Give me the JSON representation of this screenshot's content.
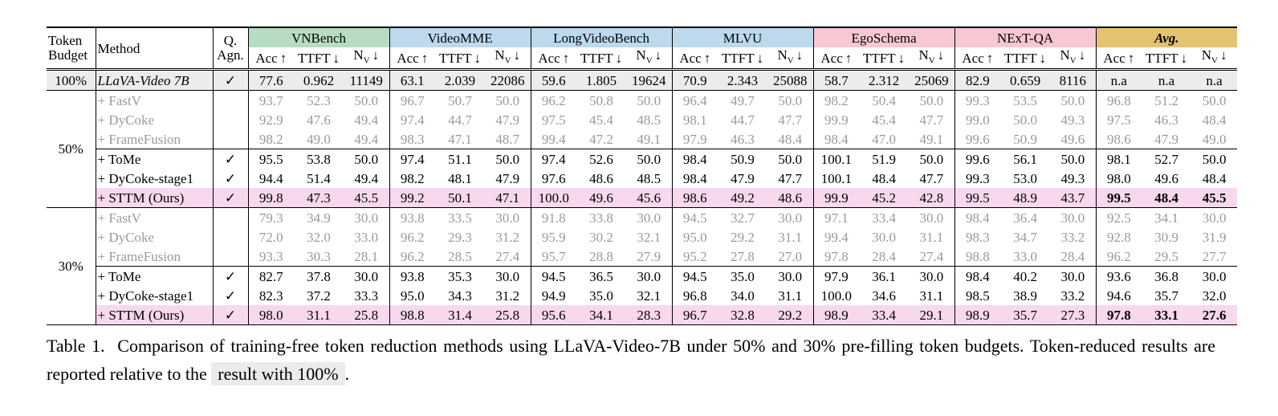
{
  "table": {
    "header": {
      "budget": "Token Budget",
      "method": "Method",
      "qagn": "Q. Agn.",
      "groups": [
        {
          "name": "VNBench",
          "color": "#b7dcc1"
        },
        {
          "name": "VideoMME",
          "color": "#bcd9ee"
        },
        {
          "name": "LongVideoBench",
          "color": "#bcd9ee"
        },
        {
          "name": "MLVU",
          "color": "#bcd9ee"
        },
        {
          "name": "EgoSchema",
          "color": "#f7c8d1"
        },
        {
          "name": "NExT-QA",
          "color": "#f7c8d1"
        },
        {
          "name": "Avg.",
          "color": "#e3c271",
          "emphasis": true
        }
      ],
      "metrics": [
        {
          "name": "Acc",
          "arrow": "↑"
        },
        {
          "name": "TTFT",
          "arrow": "↓"
        },
        {
          "name": "N",
          "sub": "V",
          "arrow": "↓"
        }
      ]
    },
    "colors": {
      "baseline": "#ececec",
      "ours": "#f7d8ee",
      "muted": "#9a9a9a"
    },
    "baseline": {
      "budget": "100%",
      "method": "LLaVA-Video 7B",
      "qagn": "✓",
      "values": [
        "77.6",
        "0.962",
        "11149",
        "63.1",
        "2.039",
        "22086",
        "59.6",
        "1.805",
        "19624",
        "70.9",
        "2.343",
        "25088",
        "58.7",
        "2.312",
        "25069",
        "82.9",
        "0.659",
        "8116",
        "n.a",
        "n.a",
        "n.a"
      ]
    },
    "sections": [
      {
        "budget": "50%",
        "rows": [
          {
            "method": "+ FastV",
            "style": "muted",
            "values": [
              "93.7",
              "52.3",
              "50.0",
              "96.7",
              "50.7",
              "50.0",
              "96.2",
              "50.8",
              "50.0",
              "96.4",
              "49.7",
              "50.0",
              "98.2",
              "50.4",
              "50.0",
              "99.3",
              "53.5",
              "50.0",
              "96.8",
              "51.2",
              "50.0"
            ]
          },
          {
            "method": "+ DyCoke",
            "style": "muted",
            "values": [
              "92.9",
              "47.6",
              "49.4",
              "97.4",
              "44.7",
              "47.9",
              "97.5",
              "45.4",
              "48.5",
              "98.1",
              "44.7",
              "47.7",
              "99.9",
              "45.4",
              "47.7",
              "99.0",
              "50.0",
              "49.3",
              "97.5",
              "46.3",
              "48.4"
            ]
          },
          {
            "method": "+ FrameFusion",
            "style": "muted",
            "values": [
              "98.2",
              "49.0",
              "49.4",
              "98.3",
              "47.1",
              "48.7",
              "99.4",
              "47.2",
              "49.1",
              "97.9",
              "46.3",
              "48.4",
              "98.4",
              "47.0",
              "49.1",
              "99.6",
              "50.9",
              "49.6",
              "98.6",
              "47.9",
              "49.0"
            ]
          },
          {
            "method": "+ ToMe",
            "style": "plain",
            "qagn": "✓",
            "values": [
              "95.5",
              "53.8",
              "50.0",
              "97.4",
              "51.1",
              "50.0",
              "97.4",
              "52.6",
              "50.0",
              "98.4",
              "50.9",
              "50.0",
              "100.1",
              "51.9",
              "50.0",
              "99.6",
              "56.1",
              "50.0",
              "98.1",
              "52.7",
              "50.0"
            ]
          },
          {
            "method": "+ DyCoke-stage1",
            "style": "plain",
            "qagn": "✓",
            "values": [
              "94.4",
              "51.4",
              "49.4",
              "98.2",
              "48.1",
              "47.9",
              "97.6",
              "48.6",
              "48.5",
              "98.4",
              "47.9",
              "47.7",
              "100.1",
              "48.4",
              "47.7",
              "99.3",
              "53.0",
              "49.3",
              "98.0",
              "49.6",
              "48.4"
            ]
          },
          {
            "method": "+ STTM (Ours)",
            "style": "ours",
            "qagn": "✓",
            "values": [
              "99.8",
              "47.3",
              "45.5",
              "99.2",
              "50.1",
              "47.1",
              "100.0",
              "49.6",
              "45.6",
              "98.6",
              "49.2",
              "48.6",
              "99.9",
              "45.2",
              "42.8",
              "99.5",
              "48.9",
              "43.7",
              "99.5",
              "48.4",
              "45.5"
            ]
          }
        ]
      },
      {
        "budget": "30%",
        "rows": [
          {
            "method": "+ FastV",
            "style": "muted",
            "values": [
              "79.3",
              "34.9",
              "30.0",
              "93.8",
              "33.5",
              "30.0",
              "91.8",
              "33.8",
              "30.0",
              "94.5",
              "32.7",
              "30.0",
              "97.1",
              "33.4",
              "30.0",
              "98.4",
              "36.4",
              "30.0",
              "92.5",
              "34.1",
              "30.0"
            ]
          },
          {
            "method": "+ DyCoke",
            "style": "muted",
            "values": [
              "72.0",
              "32.0",
              "33.0",
              "96.2",
              "29.3",
              "31.2",
              "95.9",
              "30.2",
              "32.1",
              "95.0",
              "29.2",
              "31.1",
              "99.4",
              "30.0",
              "31.1",
              "98.3",
              "34.7",
              "33.2",
              "92.8",
              "30.9",
              "31.9"
            ]
          },
          {
            "method": "+ FrameFusion",
            "style": "muted",
            "values": [
              "93.3",
              "30.3",
              "28.1",
              "96.2",
              "28.5",
              "27.4",
              "95.7",
              "28.8",
              "27.9",
              "95.2",
              "27.8",
              "27.0",
              "97.8",
              "28.4",
              "27.4",
              "98.8",
              "33.0",
              "28.4",
              "96.2",
              "29.5",
              "27.7"
            ]
          },
          {
            "method": "+ ToMe",
            "style": "plain",
            "qagn": "✓",
            "values": [
              "82.7",
              "37.8",
              "30.0",
              "93.8",
              "35.3",
              "30.0",
              "94.5",
              "36.5",
              "30.0",
              "94.5",
              "35.0",
              "30.0",
              "97.9",
              "36.1",
              "30.0",
              "98.4",
              "40.2",
              "30.0",
              "93.6",
              "36.8",
              "30.0"
            ]
          },
          {
            "method": "+ DyCoke-stage1",
            "style": "plain",
            "qagn": "✓",
            "values": [
              "82.3",
              "37.2",
              "33.3",
              "95.0",
              "34.3",
              "31.2",
              "94.9",
              "35.0",
              "32.1",
              "96.8",
              "34.0",
              "31.1",
              "100.0",
              "34.6",
              "31.1",
              "98.5",
              "38.9",
              "33.2",
              "94.6",
              "35.7",
              "32.0"
            ]
          },
          {
            "method": "+ STTM (Ours)",
            "style": "ours",
            "qagn": "✓",
            "values": [
              "98.0",
              "31.1",
              "25.8",
              "98.8",
              "31.4",
              "25.8",
              "95.6",
              "34.1",
              "28.3",
              "96.7",
              "32.8",
              "29.2",
              "98.9",
              "33.4",
              "29.1",
              "98.9",
              "35.7",
              "27.3",
              "97.8",
              "33.1",
              "27.6"
            ]
          }
        ]
      }
    ],
    "caption": {
      "label": "Table 1.",
      "text": "Comparison of training-free token reduction methods using LLaVA-Video-7B under 50% and 30% pre-filling token budgets. Token-reduced results are reported relative to the",
      "highlight": "result with 100%",
      "end": "."
    }
  }
}
